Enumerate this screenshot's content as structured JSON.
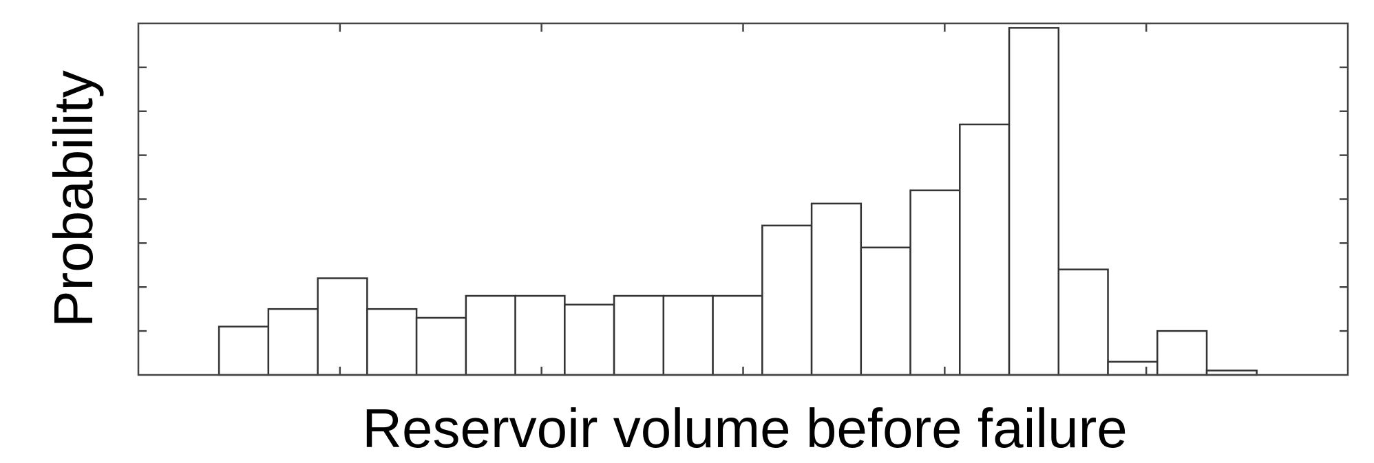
{
  "chart_data": {
    "type": "histogram",
    "x_label": "Reservoir volume before failure",
    "y_label": "Probability",
    "bins": [
      0.4,
      0.645,
      0.89,
      1.135,
      1.38,
      1.625,
      1.87,
      2.115,
      2.36,
      2.605,
      2.85,
      3.095,
      3.34,
      3.585,
      3.83,
      4.075,
      4.32,
      4.565,
      4.81,
      5.055,
      5.3,
      5.548
    ],
    "counts": [
      1.1,
      1.5,
      2.2,
      1.5,
      1.3,
      1.8,
      1.8,
      1.6,
      1.8,
      1.8,
      1.8,
      3.4,
      3.9,
      2.9,
      4.2,
      5.7,
      7.9,
      2.4,
      0.3,
      1.0,
      0.1
    ],
    "color": "#ffffff",
    "edge_color": "#333333",
    "xlim": [
      0,
      6
    ],
    "ylim": [
      0,
      8
    ],
    "xticks": [
      1,
      2,
      3,
      4,
      5
    ],
    "yticks": [
      1,
      2,
      3,
      4,
      5,
      6,
      7
    ]
  }
}
